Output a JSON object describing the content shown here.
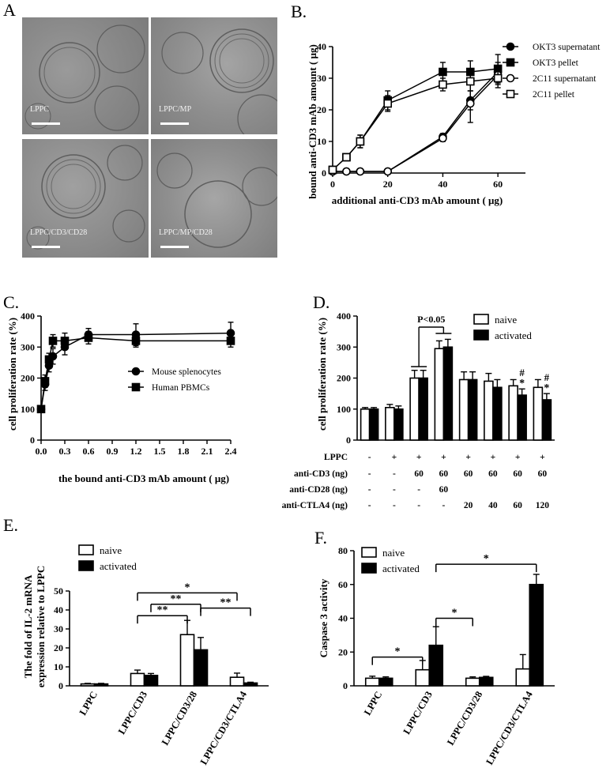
{
  "panel_labels": {
    "A": "A",
    "B": "B.",
    "C": "C.",
    "D": "D.",
    "E": "E.",
    "F": "F."
  },
  "micrographs": [
    {
      "caption": "LPPC"
    },
    {
      "caption": "LPPC/MP"
    },
    {
      "caption": "LPPC/CD3/CD28"
    },
    {
      "caption": "LPPC/MP/CD28"
    }
  ],
  "chart_data": [
    {
      "id": "B",
      "type": "line",
      "xlabel": "additional anti-CD3 mAb amount ( μg)",
      "ylabel": "bound anti-CD3 mAb amount ( μg)",
      "xlim": [
        0,
        70
      ],
      "ylim": [
        0,
        40
      ],
      "xticks": [
        0,
        20,
        40,
        60
      ],
      "yticks": [
        0,
        10,
        20,
        30,
        40
      ],
      "legend_position": "right",
      "series": [
        {
          "name": "OKT3 supernatant",
          "marker": "circle-filled",
          "x": [
            0,
            5,
            10,
            20,
            40,
            50,
            60
          ],
          "y": [
            0.5,
            0.5,
            0.5,
            0.5,
            11.5,
            23,
            32
          ],
          "err": [
            0.3,
            0.3,
            0.3,
            0.3,
            1,
            3,
            3
          ]
        },
        {
          "name": "OKT3 pellet",
          "marker": "square-filled",
          "x": [
            0,
            5,
            10,
            20,
            40,
            50,
            60
          ],
          "y": [
            1,
            5,
            10,
            23,
            32,
            32,
            33
          ],
          "err": [
            0.5,
            1,
            2,
            3,
            3,
            3.5,
            4.5
          ]
        },
        {
          "name": "2C11 supernatant",
          "marker": "circle-open",
          "x": [
            0,
            5,
            10,
            20,
            40,
            50,
            60
          ],
          "y": [
            0.5,
            0.5,
            0.5,
            0.5,
            11,
            22,
            31
          ],
          "err": [
            0.3,
            0.3,
            0.3,
            0.3,
            1,
            6,
            3
          ]
        },
        {
          "name": "2C11 pellet",
          "marker": "square-open",
          "x": [
            0,
            5,
            10,
            20,
            40,
            50,
            60
          ],
          "y": [
            1,
            5,
            10,
            22,
            28,
            29,
            30
          ],
          "err": [
            0.5,
            1,
            2,
            2.5,
            2,
            3,
            3
          ]
        }
      ]
    },
    {
      "id": "C",
      "type": "line",
      "xlabel": "the bound anti-CD3 mAb amount ( μg)",
      "ylabel": "cell proliferation rate (%)",
      "xlim": [
        0,
        2.4
      ],
      "ylim": [
        0,
        400
      ],
      "xticks": [
        "0.0",
        "0.3",
        "0.6",
        "0.9",
        "1.2",
        "1.5",
        "1.8",
        "2.1",
        "2.4"
      ],
      "yticks": [
        0,
        100,
        200,
        300,
        400
      ],
      "legend_position": "center-right",
      "series": [
        {
          "name": "Mouse splenocytes",
          "marker": "circle-filled",
          "x": [
            0,
            0.05,
            0.1,
            0.15,
            0.3,
            0.6,
            1.2,
            2.4
          ],
          "y": [
            100,
            180,
            240,
            270,
            300,
            340,
            340,
            345
          ],
          "err": [
            8,
            20,
            20,
            25,
            25,
            20,
            35,
            35
          ]
        },
        {
          "name": "Human PBMCs",
          "marker": "square-filled",
          "x": [
            0,
            0.05,
            0.1,
            0.15,
            0.3,
            0.6,
            1.2,
            2.4
          ],
          "y": [
            100,
            190,
            260,
            320,
            320,
            330,
            320,
            320
          ],
          "err": [
            8,
            20,
            20,
            20,
            25,
            20,
            20,
            20
          ]
        }
      ]
    },
    {
      "id": "D",
      "type": "bar",
      "ylabel": "cell proliferation rate (%)",
      "ylim": [
        0,
        400
      ],
      "yticks": [
        0,
        100,
        200,
        300,
        400
      ],
      "legend_position": "top-right",
      "categories_count": 8,
      "series": [
        {
          "name": "naive",
          "fill": "#ffffff",
          "values": [
            100,
            105,
            200,
            295,
            195,
            190,
            175,
            170
          ],
          "err": [
            5,
            10,
            25,
            25,
            25,
            25,
            20,
            25
          ]
        },
        {
          "name": "activated",
          "fill": "#000000",
          "values": [
            100,
            100,
            200,
            300,
            195,
            170,
            145,
            130
          ],
          "err": [
            5,
            10,
            25,
            25,
            25,
            25,
            20,
            20
          ]
        }
      ],
      "condition_table": {
        "rows": [
          {
            "label": "LPPC",
            "cells": [
              "-",
              "+",
              "+",
              "+",
              "+",
              "+",
              "+",
              "+"
            ]
          },
          {
            "label": "anti-CD3 (ng)",
            "cells": [
              "-",
              "-",
              "60",
              "60",
              "60",
              "60",
              "60",
              "60"
            ]
          },
          {
            "label": "anti-CD28 (ng)",
            "cells": [
              "-",
              "-",
              "-",
              "60",
              "",
              "",
              "",
              ""
            ]
          },
          {
            "label": "anti-CTLA4 (ng)",
            "cells": [
              "-",
              "-",
              "-",
              "-",
              "20",
              "40",
              "60",
              "120"
            ]
          }
        ]
      },
      "annotations": {
        "pvalue": "P<0.05",
        "hash": "#",
        "star": "*",
        "marked_groups": [
          6,
          7
        ]
      }
    },
    {
      "id": "E",
      "type": "bar",
      "ylabel": "The fold of IL-2 mRNA expression relative to LPPC",
      "ylim": [
        0,
        50
      ],
      "yticks": [
        0,
        10,
        20,
        30,
        40,
        50
      ],
      "legend_position": "top-left",
      "categories": [
        "LPPC",
        "LPPC/CD3",
        "LPPC/CD3/28",
        "LPPC/CD3/CTLA4"
      ],
      "series": [
        {
          "name": "naive",
          "fill": "#ffffff",
          "values": [
            1,
            6.5,
            27,
            4.5
          ],
          "err": [
            0.3,
            1.8,
            7.5,
            2.2
          ]
        },
        {
          "name": "activated",
          "fill": "#000000",
          "values": [
            1,
            5.5,
            19,
            1.5
          ],
          "err": [
            0.3,
            1,
            6.5,
            0.4
          ]
        }
      ],
      "significance": [
        {
          "label": "**",
          "from": [
            1,
            "naive"
          ],
          "to": [
            2,
            "naive"
          ],
          "level": 37
        },
        {
          "label": "**",
          "from": [
            1,
            "activated"
          ],
          "to": [
            2,
            "activated"
          ],
          "level": 43
        },
        {
          "label": "*",
          "from": [
            1,
            "naive"
          ],
          "to": [
            3,
            "naive"
          ],
          "level": 49
        },
        {
          "label": "**",
          "from": [
            2,
            "activated"
          ],
          "to": [
            3,
            "activated"
          ],
          "level": 41
        }
      ]
    },
    {
      "id": "F",
      "type": "bar",
      "ylabel": "Caspase 3 activity",
      "ylim": [
        0,
        80
      ],
      "yticks": [
        0,
        20,
        40,
        60,
        80
      ],
      "legend_position": "top-left",
      "categories": [
        "LPPC",
        "LPPC/CD3",
        "LPPC/CD3/28",
        "LPPC/CD3/CTLA4"
      ],
      "series": [
        {
          "name": "naive",
          "fill": "#ffffff",
          "values": [
            4.5,
            9.5,
            4.5,
            10
          ],
          "err": [
            1.2,
            5.5,
            0.8,
            8.5
          ]
        },
        {
          "name": "activated",
          "fill": "#000000",
          "values": [
            4.5,
            24,
            5,
            60
          ],
          "err": [
            0.8,
            11,
            0.6,
            6
          ]
        }
      ],
      "significance": [
        {
          "label": "*",
          "from": [
            0,
            "naive"
          ],
          "to": [
            1,
            "naive"
          ],
          "level": 17
        },
        {
          "label": "*",
          "from": [
            1,
            "activated"
          ],
          "to": [
            2,
            "naive"
          ],
          "level": 40
        },
        {
          "label": "*",
          "from": [
            1,
            "activated"
          ],
          "to": [
            3,
            "activated"
          ],
          "level": 72
        }
      ]
    }
  ]
}
